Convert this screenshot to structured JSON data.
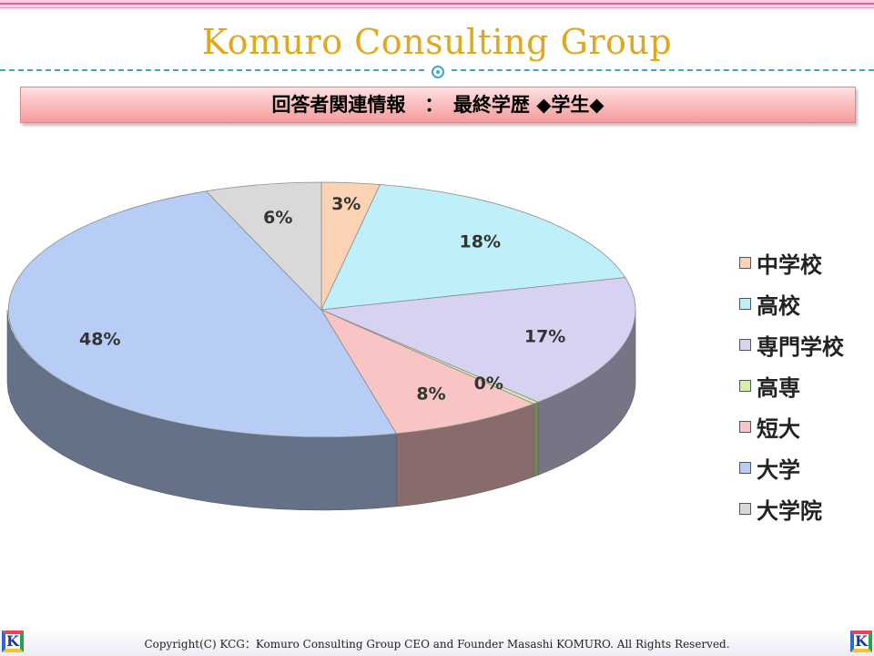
{
  "header": {
    "brand_title": "Komuro Consulting Group",
    "slide_title": "回答者関連情報　：　最終学歴 ◆学生◆"
  },
  "footer": {
    "copyright": "Copyright(C)  KCG：Komuro Consulting Group   CEO and Founder  Masashi KOMURO. All Rights Reserved.",
    "logo_letter": "K"
  },
  "chart_data": {
    "type": "pie",
    "style": "3d",
    "legend_position": "right",
    "categories": [
      "中学校",
      "高校",
      "専門学校",
      "高専",
      "短大",
      "大学",
      "大学院"
    ],
    "values": [
      3,
      18,
      17,
      0.3,
      8,
      48,
      6
    ],
    "labels": [
      "3%",
      "18%",
      "17%",
      "0%",
      "8%",
      "48%",
      "6%"
    ],
    "colors": [
      "#fbd3b4",
      "#bff0fa",
      "#d7d2f2",
      "#d2f0a8",
      "#f8c4c4",
      "#b8cdf6",
      "#d9d9d9"
    ]
  }
}
